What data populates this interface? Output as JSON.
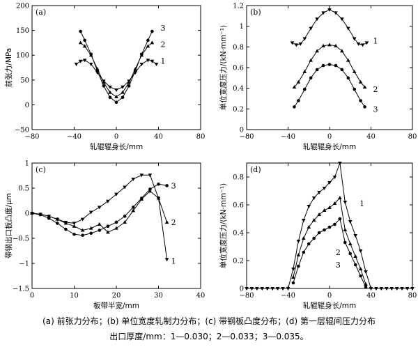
{
  "chart_data": [
    {
      "id": "a",
      "type": "line",
      "panel_label": "(a)",
      "xlabel": "轧辊辊身长/mm",
      "ylabel": "前张力/MPa",
      "xlim": [
        -80,
        80
      ],
      "ylim": [
        -50,
        200
      ],
      "xticks": [
        -80,
        -40,
        0,
        40,
        80
      ],
      "yticks": [
        -50,
        0,
        50,
        100,
        150,
        200
      ],
      "series": [
        {
          "name": "1",
          "marker": "tri-down",
          "x": [
            -38,
            -34,
            -30,
            -24,
            -18,
            -12,
            -6,
            0,
            6,
            12,
            18,
            24,
            30,
            34,
            38
          ],
          "y": [
            82,
            88,
            90,
            82,
            65,
            48,
            36,
            30,
            36,
            48,
            65,
            82,
            90,
            88,
            82
          ]
        },
        {
          "name": "2",
          "marker": "tri-up",
          "x": [
            -34,
            -30,
            -24,
            -18,
            -12,
            -6,
            0,
            6,
            12,
            18,
            24,
            30,
            34
          ],
          "y": [
            125,
            118,
            100,
            72,
            45,
            25,
            16,
            25,
            45,
            72,
            100,
            118,
            125
          ]
        },
        {
          "name": "3",
          "marker": "circle",
          "x": [
            -34,
            -30,
            -24,
            -18,
            -12,
            -6,
            0,
            6,
            12,
            18,
            24,
            30,
            34
          ],
          "y": [
            148,
            130,
            102,
            68,
            38,
            15,
            5,
            15,
            38,
            68,
            102,
            130,
            148
          ]
        }
      ],
      "series_labels": [
        {
          "text": "1",
          "x": 42,
          "y": 88
        },
        {
          "text": "2",
          "x": 42,
          "y": 122
        },
        {
          "text": "3",
          "x": 42,
          "y": 155
        }
      ]
    },
    {
      "id": "b",
      "type": "line",
      "panel_label": "(b)",
      "xlabel": "轧辊辊身长/mm",
      "ylabel": "单位宽度压力/(kN·mm⁻¹)",
      "xlim": [
        -80,
        80
      ],
      "ylim": [
        0,
        1.2
      ],
      "xticks": [
        -80,
        -40,
        0,
        40,
        80
      ],
      "yticks": [
        0,
        0.2,
        0.4,
        0.6,
        0.8,
        1.0,
        1.2
      ],
      "series": [
        {
          "name": "1",
          "marker": "tri-down",
          "x": [
            -36,
            -32,
            -28,
            -24,
            -18,
            -12,
            -6,
            0,
            6,
            12,
            18,
            24,
            28,
            32,
            36
          ],
          "y": [
            0.84,
            0.82,
            0.83,
            0.88,
            0.98,
            1.07,
            1.13,
            1.16,
            1.13,
            1.07,
            0.98,
            0.88,
            0.83,
            0.82,
            0.84
          ]
        },
        {
          "name": "2",
          "marker": "tri-up",
          "x": [
            -34,
            -30,
            -24,
            -18,
            -12,
            -6,
            0,
            6,
            12,
            18,
            24,
            30,
            34
          ],
          "y": [
            0.41,
            0.46,
            0.56,
            0.67,
            0.76,
            0.81,
            0.82,
            0.81,
            0.76,
            0.67,
            0.56,
            0.46,
            0.41
          ]
        },
        {
          "name": "3",
          "marker": "circle",
          "x": [
            -34,
            -30,
            -24,
            -18,
            -12,
            -6,
            0,
            6,
            12,
            18,
            24,
            30,
            34
          ],
          "y": [
            0.22,
            0.28,
            0.39,
            0.5,
            0.58,
            0.62,
            0.63,
            0.62,
            0.58,
            0.5,
            0.39,
            0.28,
            0.22
          ]
        }
      ],
      "series_labels": [
        {
          "text": "1",
          "x": 42,
          "y": 0.86
        },
        {
          "text": "2",
          "x": 42,
          "y": 0.39
        },
        {
          "text": "3",
          "x": 42,
          "y": 0.2
        }
      ]
    },
    {
      "id": "c",
      "type": "line",
      "panel_label": "(c)",
      "xlabel": "板带半宽/mm",
      "ylabel": "带钢出口板凸度/μm",
      "xlim": [
        0,
        40
      ],
      "ylim": [
        -1.5,
        1.0
      ],
      "xticks": [
        0,
        10,
        20,
        30,
        40
      ],
      "yticks": [
        -1.5,
        -1.0,
        -0.5,
        0,
        0.5,
        1.0
      ],
      "series": [
        {
          "name": "1",
          "marker": "tri-down",
          "x": [
            0,
            2,
            4,
            6,
            8,
            10,
            12,
            14,
            16,
            18,
            20,
            22,
            24,
            26,
            28,
            30,
            32
          ],
          "y": [
            0,
            -0.02,
            -0.06,
            -0.12,
            -0.18,
            -0.2,
            -0.12,
            0.02,
            0.12,
            0.24,
            0.38,
            0.52,
            0.68,
            0.76,
            0.76,
            0.3,
            -0.92
          ]
        },
        {
          "name": "2",
          "marker": "tri-up",
          "x": [
            0,
            2,
            4,
            6,
            8,
            10,
            12,
            14,
            16,
            18,
            20,
            22,
            24,
            26,
            28,
            30,
            32
          ],
          "y": [
            0,
            -0.02,
            -0.06,
            -0.12,
            -0.2,
            -0.26,
            -0.34,
            -0.3,
            -0.22,
            -0.38,
            -0.3,
            -0.18,
            0.05,
            0.28,
            0.44,
            0.3,
            -0.18
          ]
        },
        {
          "name": "3",
          "marker": "circle",
          "x": [
            0,
            2,
            4,
            6,
            8,
            10,
            12,
            14,
            16,
            18,
            20,
            22,
            24,
            26,
            28,
            30,
            32
          ],
          "y": [
            0,
            -0.03,
            -0.1,
            -0.2,
            -0.32,
            -0.42,
            -0.44,
            -0.4,
            -0.34,
            -0.26,
            -0.18,
            -0.06,
            0.12,
            0.3,
            0.48,
            0.58,
            0.55
          ]
        }
      ],
      "series_labels": [
        {
          "text": "1",
          "x": 33,
          "y": -0.95
        },
        {
          "text": "2",
          "x": 33,
          "y": -0.18
        },
        {
          "text": "3",
          "x": 33,
          "y": 0.55
        }
      ]
    },
    {
      "id": "d",
      "type": "line",
      "panel_label": "(d)",
      "xlabel": "轧辊辊身长/mm",
      "ylabel": "单位宽度压力/(kN·mm⁻¹)",
      "xlim": [
        -80,
        80
      ],
      "ylim": [
        0,
        0.9
      ],
      "xticks": [
        -80,
        -40,
        0,
        40,
        80
      ],
      "yticks": [
        0,
        0.2,
        0.4,
        0.6,
        0.8
      ],
      "series": [
        {
          "name": "1",
          "marker": "tri-down",
          "x": [
            -80,
            -75,
            -70,
            -65,
            -60,
            -55,
            -50,
            -45,
            -40,
            -35,
            -30,
            -25,
            -20,
            -15,
            -10,
            -5,
            0,
            5,
            10,
            15,
            20,
            25,
            30,
            35,
            40,
            45,
            50,
            55,
            60,
            65,
            70,
            75,
            80
          ],
          "y": [
            0,
            0,
            0,
            0,
            0,
            0,
            0,
            0,
            0,
            0.14,
            0.34,
            0.49,
            0.59,
            0.65,
            0.69,
            0.72,
            0.76,
            0.8,
            0.9,
            0.62,
            0.48,
            0.38,
            0.27,
            0.12,
            0,
            0,
            0,
            0,
            0,
            0,
            0,
            0,
            0
          ]
        },
        {
          "name": "2",
          "marker": "tri-up",
          "x": [
            -35,
            -30,
            -25,
            -20,
            -15,
            -10,
            -5,
            0,
            5,
            10,
            15,
            20,
            25,
            30,
            35
          ],
          "y": [
            0.08,
            0.24,
            0.36,
            0.44,
            0.49,
            0.53,
            0.56,
            0.58,
            0.61,
            0.65,
            0.42,
            0.32,
            0.23,
            0.14,
            0.03
          ]
        },
        {
          "name": "3",
          "marker": "circle",
          "x": [
            -35,
            -30,
            -25,
            -20,
            -15,
            -10,
            -5,
            0,
            5,
            10,
            15,
            20,
            25,
            30,
            35
          ],
          "y": [
            0.04,
            0.16,
            0.26,
            0.32,
            0.36,
            0.4,
            0.42,
            0.44,
            0.46,
            0.5,
            0.33,
            0.25,
            0.17,
            0.09,
            0.01
          ]
        }
      ],
      "series_labels": [
        {
          "text": "1",
          "x": 29,
          "y": 0.61
        },
        {
          "text": "2",
          "x": 6,
          "y": 0.26
        },
        {
          "text": "3",
          "x": 6,
          "y": 0.17
        }
      ]
    }
  ],
  "caption": {
    "line1": "(a)  前张力分布；(b)  单位宽度轧制力分布；(c)  带钢板凸度分布；(d)  第一层辊间压力分布",
    "line2": "出口厚度/mm：1—0.030；2—0.033；3—0.035。"
  }
}
